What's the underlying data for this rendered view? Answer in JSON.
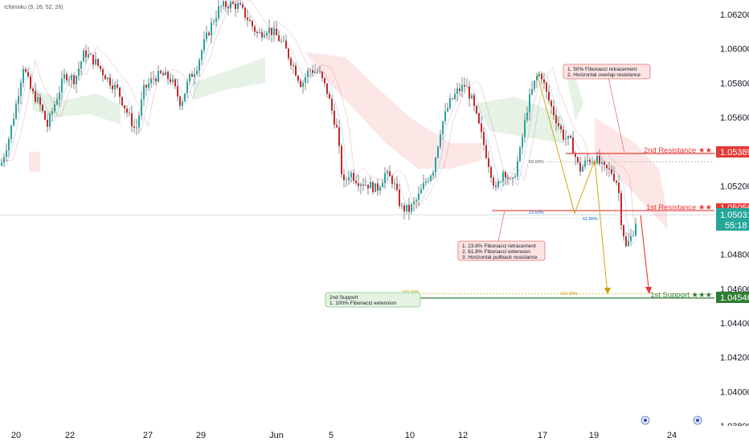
{
  "indicator_label": "Ichimoku (9, 26, 52, 26)",
  "chart_data": {
    "type": "candlestick",
    "indicator": "Ichimoku (9, 26, 52, 26)",
    "ylim": [
      1.036,
      1.064
    ],
    "x_ticks": [
      "20",
      "22",
      "27",
      "29",
      "Jun",
      "5",
      "10",
      "12",
      "17",
      "19",
      "24"
    ],
    "y_ticks": [
      "1.06200",
      "1.06000",
      "1.05800",
      "1.05600",
      "1.05400",
      "1.05200",
      "1.05000",
      "1.04800",
      "1.04600",
      "1.04400",
      "1.04200",
      "1.04000",
      "1.03800"
    ],
    "last_price": "1.05031",
    "countdown": "55:18",
    "levels": [
      {
        "name": "2nd Resistance ★★",
        "value": "1.05389",
        "numeric": 1.05389,
        "color": "#e53935"
      },
      {
        "name": "1st Resistance ★★",
        "value": "1.05056",
        "numeric": 1.05056,
        "color": "#e53935"
      },
      {
        "name": "1st Support ★★★",
        "value": "1.04546",
        "numeric": 1.04546,
        "color": "#2e7d32"
      }
    ],
    "fib_labels": [
      "50.00%",
      "23.60%",
      "61.80%",
      "100.00%",
      "100.00%"
    ],
    "annotations": {
      "resistance2": [
        "1. 50% Fibonacci retracement",
        "2. Horizontal overlap resistance"
      ],
      "resistance1": [
        "1. 23.6% Fibonacci retracement",
        "2. 61.8% Fibonacci extension",
        "3. Horizontal pullback resistance"
      ],
      "support2": [
        "2nd Support",
        "1. 100% Fibonacci extension"
      ]
    }
  }
}
